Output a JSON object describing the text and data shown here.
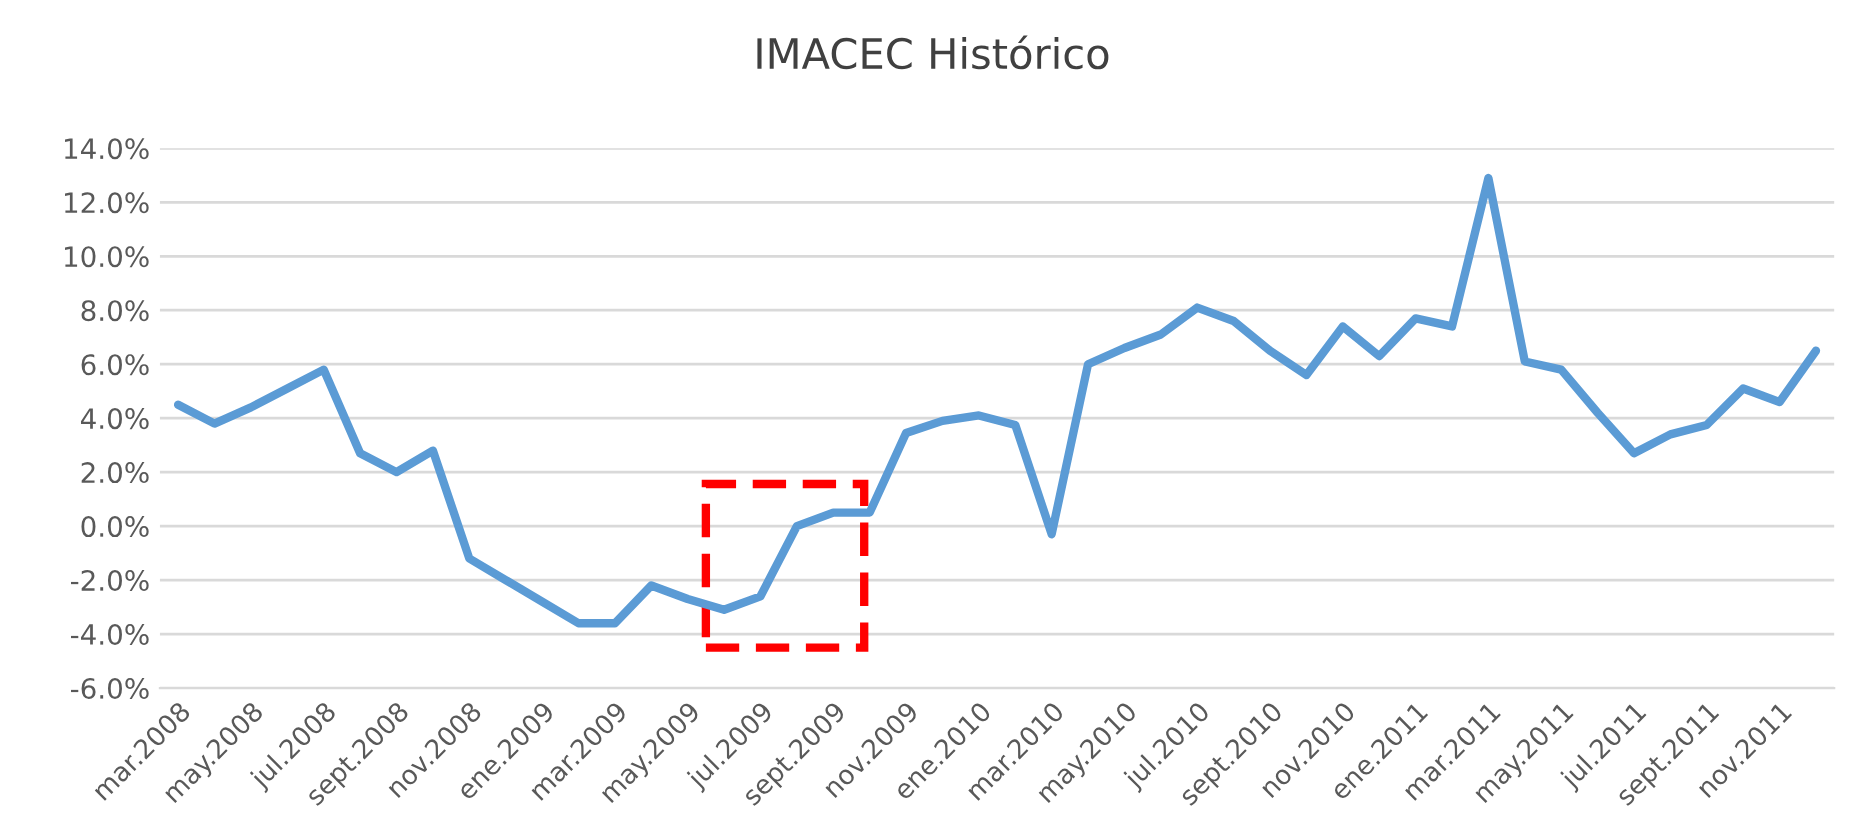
{
  "chart_data": {
    "type": "line",
    "title": "IMACEC Histórico",
    "categories": [
      "mar.2008",
      null,
      "may.2008",
      null,
      "jul.2008",
      null,
      "sept.2008",
      null,
      "nov.2008",
      null,
      "ene.2009",
      null,
      "mar.2009",
      null,
      "may.2009",
      null,
      "jul.2009",
      null,
      "sept.2009",
      null,
      "nov.2009",
      null,
      "ene.2010",
      null,
      "mar.2010",
      null,
      "may.2010",
      null,
      "jul.2010",
      null,
      "sept.2010",
      null,
      "nov.2010",
      null,
      "ene.2011",
      null,
      "mar.2011",
      null,
      "may.2011",
      null,
      "jul.2011",
      null,
      "sept.2011",
      null,
      "nov.2011",
      null
    ],
    "series": [
      {
        "color": "#5b9bd5",
        "values": [
          4.5,
          3.8,
          4.4,
          5.1,
          5.8,
          2.7,
          2.0,
          2.8,
          -1.2,
          -2.0,
          -2.8,
          -3.6,
          -3.6,
          -2.2,
          -2.7,
          -3.1,
          -2.6,
          0.0,
          0.5,
          0.5,
          3.45,
          3.9,
          4.1,
          3.75,
          -0.3,
          6.0,
          6.6,
          7.1,
          8.1,
          7.6,
          6.5,
          5.6,
          7.4,
          6.3,
          7.7,
          7.4,
          12.9,
          6.1,
          5.8,
          4.2,
          2.7,
          3.4,
          3.75,
          5.1,
          4.6,
          6.5
        ]
      }
    ],
    "ylim": [
      -6,
      14
    ],
    "yticks": [
      {
        "value": -6,
        "label": "-6.0%"
      },
      {
        "value": -4,
        "label": "-4.0%"
      },
      {
        "value": -2,
        "label": "-2.0%"
      },
      {
        "value": 0,
        "label": "0.0%"
      },
      {
        "value": 2,
        "label": "2.0%"
      },
      {
        "value": 4,
        "label": "4.0%"
      },
      {
        "value": 6,
        "label": "6.0%"
      },
      {
        "value": 8,
        "label": "8.0%"
      },
      {
        "value": 10,
        "label": "10.0%"
      },
      {
        "value": 12,
        "label": "12.0%"
      },
      {
        "value": 14,
        "label": "14.0%"
      }
    ],
    "grid": "y",
    "legend": false,
    "marker": "none",
    "line_style": "solid"
  }
}
